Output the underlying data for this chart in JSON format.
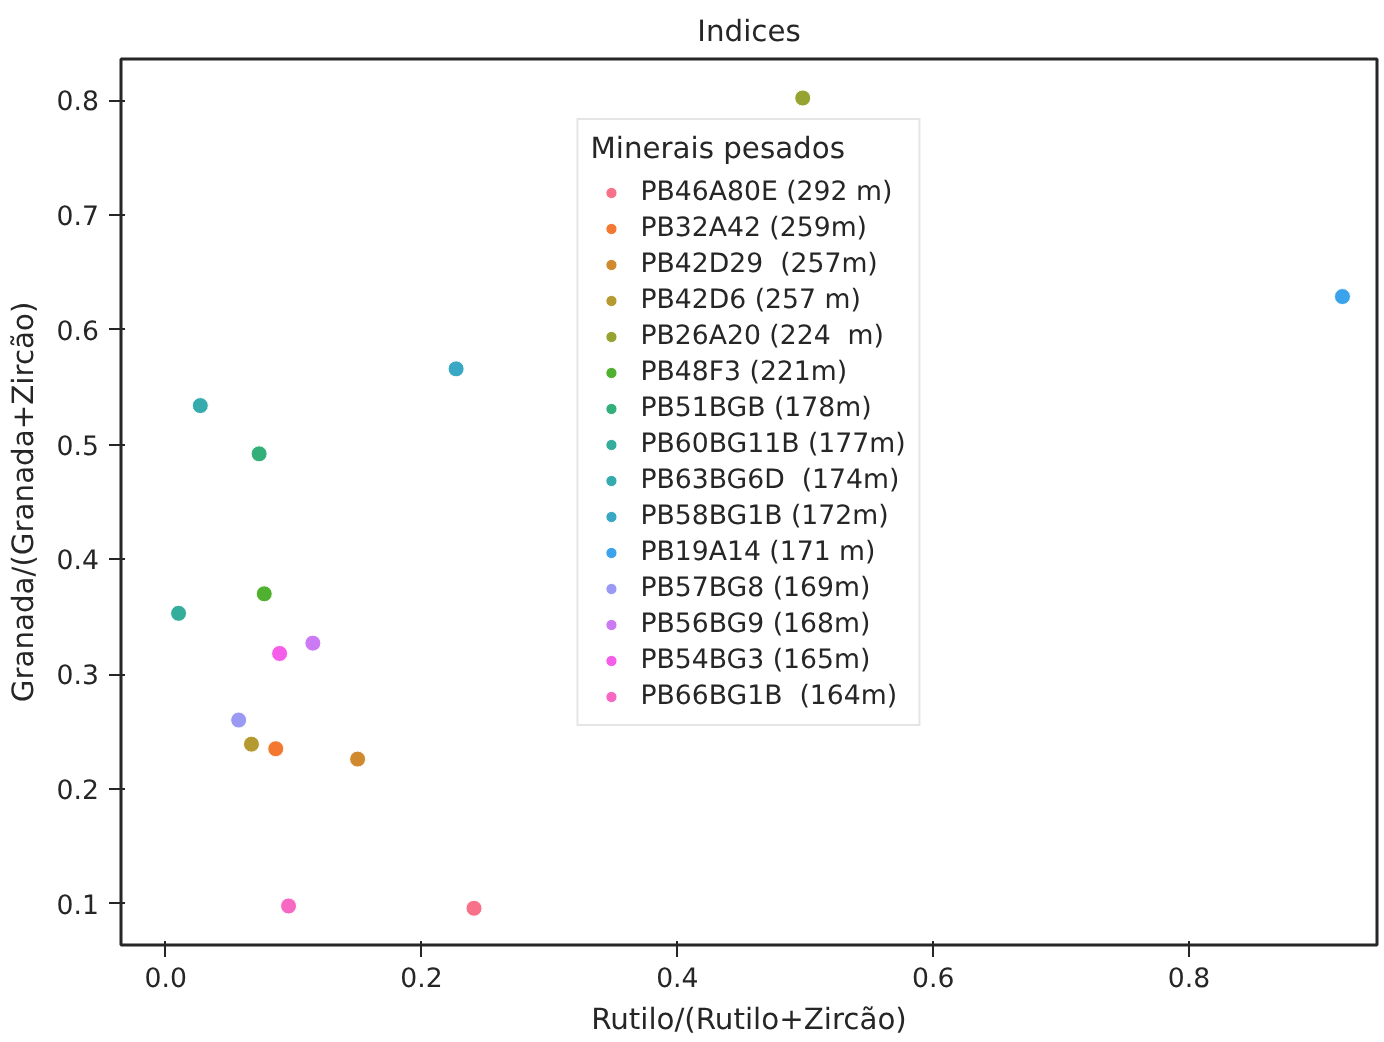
{
  "chart_data": {
    "type": "scatter",
    "title": "Indices",
    "xlabel": "Rutilo/(Rutilo+Zircão)",
    "ylabel": "Granada/(Granada+Zircão)",
    "legend_title": "Minerais pesados",
    "legend": "top",
    "grid": false,
    "marker": "circle",
    "xlim": [
      -0.035,
      0.947
    ],
    "ylim": [
      0.064,
      0.836
    ],
    "xticks": [
      {
        "value": 0,
        "label": "0.0"
      },
      0.2,
      0.4,
      0.6,
      0.8
    ],
    "yticks": [
      0.1,
      0.2,
      0.3,
      0.4,
      0.5,
      0.6,
      0.7,
      0.8
    ],
    "series": [
      {
        "name": "PB46A80E (292 m)",
        "color": "#f77189",
        "x": [
          0.241
        ],
        "values": [
          0.096
        ]
      },
      {
        "name": "PB32A42 (259m)",
        "color": "#f37932",
        "x": [
          0.086
        ],
        "values": [
          0.235
        ]
      },
      {
        "name": "PB42D29  (257m)",
        "color": "#d0892f",
        "x": [
          0.15
        ],
        "values": [
          0.226
        ]
      },
      {
        "name": "PB42D6 (257 m)",
        "color": "#b49a31",
        "x": [
          0.067
        ],
        "values": [
          0.239
        ]
      },
      {
        "name": "PB26A20 (224  m)",
        "color": "#96a331",
        "x": [
          0.498
        ],
        "values": [
          0.802
        ]
      },
      {
        "name": "PB48F3 (221m)",
        "color": "#50b131",
        "x": [
          0.077
        ],
        "values": [
          0.37
        ]
      },
      {
        "name": "PB51BGB (178m)",
        "color": "#33b07a",
        "x": [
          0.073
        ],
        "values": [
          0.492
        ]
      },
      {
        "name": "PB60BG11B (177m)",
        "color": "#35ad9c",
        "x": [
          0.01
        ],
        "values": [
          0.353
        ]
      },
      {
        "name": "PB63BG6D  (174m)",
        "color": "#36abae",
        "x": [
          0.027
        ],
        "values": [
          0.534
        ]
      },
      {
        "name": "PB58BG1B (172m)",
        "color": "#38a8c5",
        "x": [
          0.227
        ],
        "values": [
          0.566
        ]
      },
      {
        "name": "PB19A14 (171 m)",
        "color": "#3ba3ec",
        "x": [
          0.92
        ],
        "values": [
          0.629
        ]
      },
      {
        "name": "PB57BG8 (169m)",
        "color": "#9a9af5",
        "x": [
          0.057
        ],
        "values": [
          0.26
        ]
      },
      {
        "name": "PB56BG9 (168m)",
        "color": "#cc7af4",
        "x": [
          0.115
        ],
        "values": [
          0.327
        ]
      },
      {
        "name": "PB54BG3 (165m)",
        "color": "#f45ee8",
        "x": [
          0.089
        ],
        "values": [
          0.318
        ]
      },
      {
        "name": "PB66BG1B  (164m)",
        "color": "#f668c2",
        "x": [
          0.096
        ],
        "values": [
          0.098
        ]
      }
    ]
  }
}
